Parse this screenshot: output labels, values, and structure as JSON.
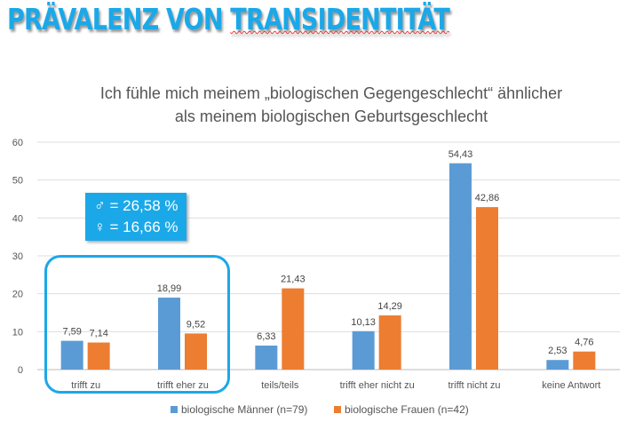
{
  "slide_title_a": "PRÄVALENZ VON ",
  "slide_title_b": "TRANSIDENTITÄT",
  "callout": {
    "male": "♂ = 26,58 %",
    "female": "♀ = 16,66 %"
  },
  "chart_data": {
    "type": "bar",
    "title_line1": "Ich fühle mich meinem „biologischen Gegengeschlecht“ ähnlicher",
    "title_line2": "als meinem biologischen Geburtsgeschlecht",
    "categories": [
      "trifft zu",
      "trifft eher zu",
      "teils/teils",
      "trifft eher nicht zu",
      "trifft nicht zu",
      "keine Antwort"
    ],
    "series": [
      {
        "name": "biologische Männer (n=79)",
        "color": "#5b9bd5",
        "values": [
          7.59,
          18.99,
          6.33,
          10.13,
          54.43,
          2.53
        ],
        "labels": [
          "7,59",
          "18,99",
          "6,33",
          "10,13",
          "54,43",
          "2,53"
        ]
      },
      {
        "name": "biologische Frauen (n=42)",
        "color": "#ed7d31",
        "values": [
          7.14,
          9.52,
          21.43,
          14.29,
          42.86,
          4.76
        ],
        "labels": [
          "7,14",
          "9,52",
          "21,43",
          "14,29",
          "42,86",
          "4,76"
        ]
      }
    ],
    "ylim": [
      0,
      60
    ],
    "yticks": [
      0,
      10,
      20,
      30,
      40,
      50,
      60
    ],
    "grid": true,
    "legend": "bottom",
    "highlight_color": "#1ba8e8"
  }
}
